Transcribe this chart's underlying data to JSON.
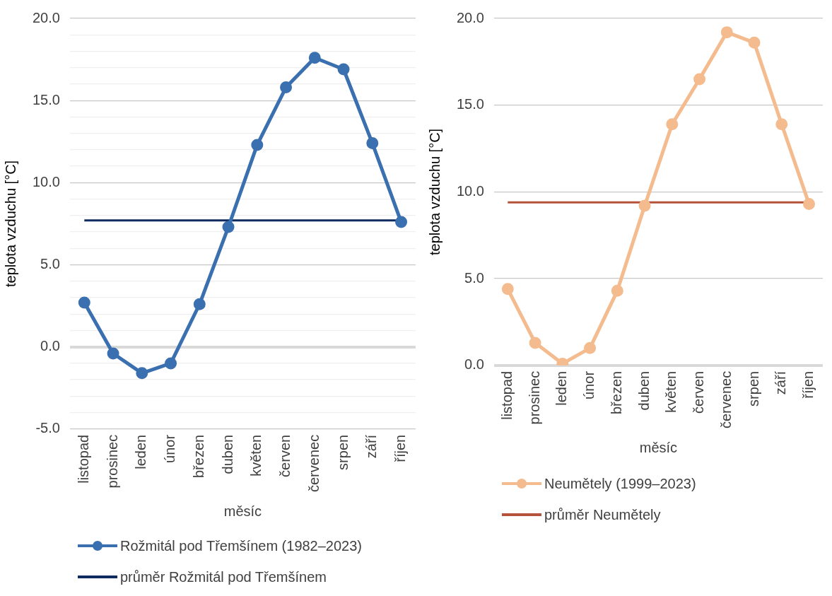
{
  "chart_data": [
    {
      "type": "line",
      "xlabel": "měsíc",
      "ylabel": "teplota vzduchu [°C]",
      "categories": [
        "listopad",
        "prosinec",
        "leden",
        "únor",
        "březen",
        "duben",
        "květen",
        "červen",
        "červenec",
        "srpen",
        "září",
        "říjen"
      ],
      "series": [
        {
          "name": "Rožmitál pod Třemšínem (1982–2023)",
          "color": "#3a70b0",
          "values": [
            2.7,
            -0.4,
            -1.6,
            -1.0,
            2.6,
            7.3,
            12.3,
            15.8,
            17.6,
            16.9,
            12.4,
            7.6
          ]
        }
      ],
      "ref_lines": [
        {
          "axis": "y",
          "value": 7.7,
          "label": "průměr Rožmitál pod Třemšínem",
          "color": "#0f2b5e"
        }
      ],
      "ylim": [
        -5,
        20
      ],
      "yticks": [
        {
          "value": -5,
          "label": "-5.0"
        },
        {
          "value": -4,
          "label": null
        },
        {
          "value": -3,
          "label": null
        },
        {
          "value": -2,
          "label": null
        },
        {
          "value": -1,
          "label": null
        },
        {
          "value": 0,
          "label": "0.0"
        },
        {
          "value": 1,
          "label": null
        },
        {
          "value": 2,
          "label": null
        },
        {
          "value": 3,
          "label": null
        },
        {
          "value": 4,
          "label": null
        },
        {
          "value": 5,
          "label": "5.0"
        },
        {
          "value": 6,
          "label": null
        },
        {
          "value": 7,
          "label": null
        },
        {
          "value": 8,
          "label": null
        },
        {
          "value": 9,
          "label": null
        },
        {
          "value": 10,
          "label": "10.0"
        },
        {
          "value": 11,
          "label": null
        },
        {
          "value": 12,
          "label": null
        },
        {
          "value": 13,
          "label": null
        },
        {
          "value": 14,
          "label": null
        },
        {
          "value": 15,
          "label": "15.0"
        },
        {
          "value": 16,
          "label": null
        },
        {
          "value": 17,
          "label": null
        },
        {
          "value": 18,
          "label": null
        },
        {
          "value": 19,
          "label": null
        },
        {
          "value": 20,
          "label": "20.0"
        }
      ],
      "grid": "y",
      "legend": "bottom",
      "marker": "circle"
    },
    {
      "type": "line",
      "xlabel": "měsíc",
      "ylabel": "teplota vzduchu [°C]",
      "categories": [
        "listopad",
        "prosinec",
        "leden",
        "únor",
        "březen",
        "duben",
        "květen",
        "červen",
        "červenec",
        "srpen",
        "září",
        "říjen"
      ],
      "series": [
        {
          "name": "Neumětely (1999–2023)",
          "color": "#f4bc8e",
          "values": [
            4.4,
            1.3,
            0.1,
            1.0,
            4.3,
            9.2,
            13.9,
            16.5,
            19.2,
            18.6,
            13.9,
            9.3
          ]
        }
      ],
      "ref_lines": [
        {
          "axis": "y",
          "value": 9.4,
          "label": "průměr Neumětely",
          "color": "#b5533a"
        }
      ],
      "ylim": [
        0,
        20
      ],
      "yticks": [
        {
          "value": 0,
          "label": "0.0"
        },
        {
          "value": 5,
          "label": "5.0"
        },
        {
          "value": 10,
          "label": "10.0"
        },
        {
          "value": 15,
          "label": "15.0"
        },
        {
          "value": 20,
          "label": "20.0"
        }
      ],
      "grid": "y",
      "legend": "bottom",
      "marker": "circle"
    }
  ]
}
